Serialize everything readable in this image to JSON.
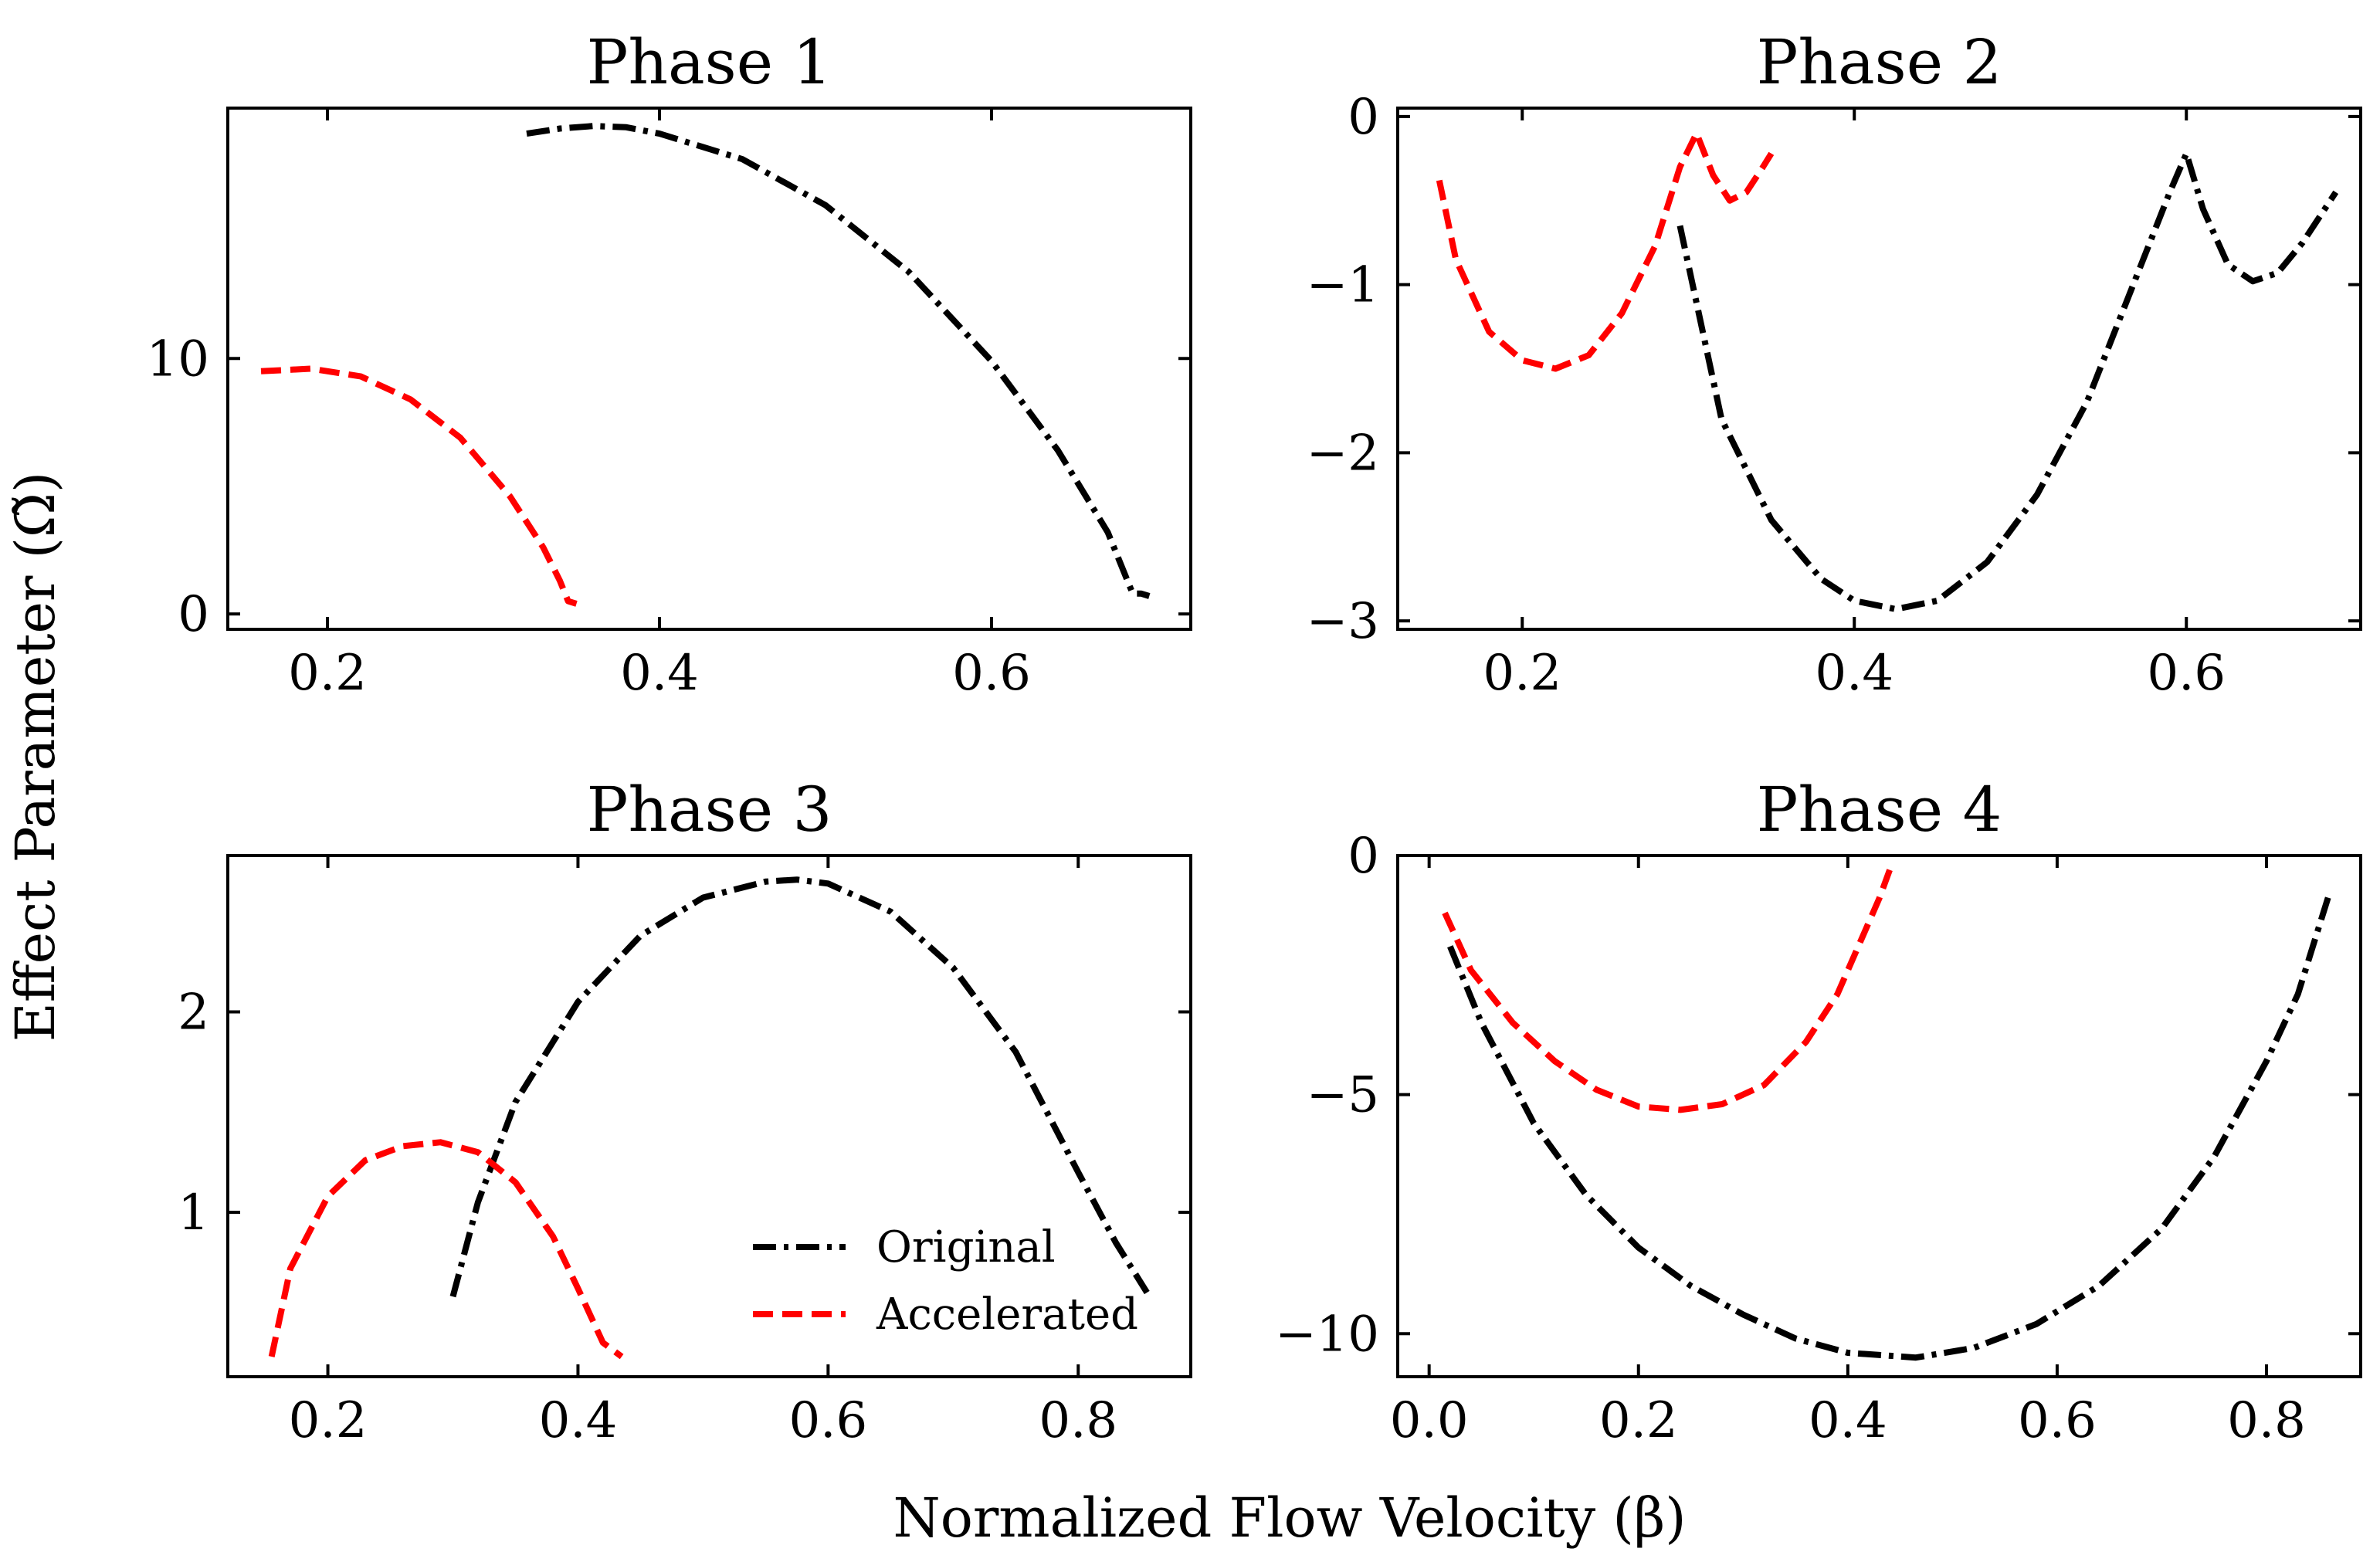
{
  "figure": {
    "xlabel": "Normalized Flow Velocity (β)",
    "ylabel": "Effect Parameter (Ω̃)"
  },
  "colors": {
    "original": "#000000",
    "accelerated": "#ff0000"
  },
  "legend": {
    "location": "lower-right",
    "panel": 2,
    "entries": [
      "Original",
      "Accelerated"
    ]
  },
  "chart_data": [
    {
      "type": "line",
      "title": "Phase 1",
      "xlim": [
        0.14,
        0.72
      ],
      "ylim": [
        -0.6,
        19.8
      ],
      "xticks": [
        0.2,
        0.4,
        0.6
      ],
      "xtick_labels": [
        "0.2",
        "0.4",
        "0.6"
      ],
      "yticks": [
        0,
        10
      ],
      "ytick_labels": [
        "0",
        "10"
      ],
      "series": [
        {
          "name": "Original",
          "x": [
            0.32,
            0.34,
            0.36,
            0.38,
            0.4,
            0.45,
            0.5,
            0.55,
            0.6,
            0.64,
            0.67,
            0.685,
            0.69,
            0.695
          ],
          "y": [
            18.8,
            19.0,
            19.1,
            19.05,
            18.8,
            17.8,
            16.0,
            13.4,
            9.9,
            6.4,
            3.2,
            0.8,
            0.8,
            0.7
          ]
        },
        {
          "name": "Accelerated",
          "x": [
            0.16,
            0.19,
            0.22,
            0.25,
            0.28,
            0.31,
            0.33,
            0.34,
            0.345,
            0.35
          ],
          "y": [
            9.5,
            9.6,
            9.3,
            8.4,
            6.9,
            4.6,
            2.6,
            1.3,
            0.5,
            0.4
          ]
        }
      ]
    },
    {
      "type": "line",
      "title": "Phase 2",
      "xlim": [
        0.125,
        0.705
      ],
      "ylim": [
        -3.05,
        0.05
      ],
      "xticks": [
        0.2,
        0.4,
        0.6
      ],
      "xtick_labels": [
        "0.2",
        "0.4",
        "0.6"
      ],
      "yticks": [
        0,
        -1,
        -2,
        -3
      ],
      "ytick_labels": [
        "0",
        "−1",
        "−2",
        "−3"
      ],
      "series": [
        {
          "name": "Original",
          "x": [
            0.295,
            0.32,
            0.35,
            0.38,
            0.4,
            0.425,
            0.45,
            0.48,
            0.51,
            0.54,
            0.57,
            0.59,
            0.6,
            0.61,
            0.625,
            0.64,
            0.655,
            0.67,
            0.69
          ],
          "y": [
            -0.65,
            -1.8,
            -2.4,
            -2.75,
            -2.88,
            -2.93,
            -2.88,
            -2.65,
            -2.25,
            -1.7,
            -0.95,
            -0.45,
            -0.22,
            -0.55,
            -0.88,
            -0.98,
            -0.93,
            -0.75,
            -0.45
          ]
        },
        {
          "name": "Accelerated",
          "x": [
            0.15,
            0.16,
            0.18,
            0.2,
            0.22,
            0.24,
            0.26,
            0.28,
            0.295,
            0.305,
            0.315,
            0.325,
            0.335,
            0.345,
            0.35
          ],
          "y": [
            -0.38,
            -0.85,
            -1.28,
            -1.45,
            -1.5,
            -1.42,
            -1.17,
            -0.77,
            -0.3,
            -0.1,
            -0.35,
            -0.5,
            -0.45,
            -0.3,
            -0.22
          ]
        }
      ]
    },
    {
      "type": "line",
      "title": "Phase 3",
      "xlim": [
        0.12,
        0.89
      ],
      "ylim": [
        0.18,
        2.78
      ],
      "xticks": [
        0.2,
        0.4,
        0.6,
        0.8
      ],
      "xtick_labels": [
        "0.2",
        "0.4",
        "0.6",
        "0.8"
      ],
      "yticks": [
        1,
        2
      ],
      "ytick_labels": [
        "1",
        "2"
      ],
      "series": [
        {
          "name": "Original",
          "x": [
            0.3,
            0.32,
            0.35,
            0.4,
            0.45,
            0.5,
            0.55,
            0.575,
            0.6,
            0.65,
            0.7,
            0.75,
            0.8,
            0.83,
            0.855
          ],
          "y": [
            0.58,
            1.05,
            1.55,
            2.05,
            2.38,
            2.57,
            2.65,
            2.66,
            2.64,
            2.5,
            2.22,
            1.8,
            1.2,
            0.85,
            0.6
          ]
        },
        {
          "name": "Accelerated",
          "x": [
            0.155,
            0.17,
            0.2,
            0.23,
            0.26,
            0.29,
            0.32,
            0.35,
            0.38,
            0.4,
            0.42,
            0.435
          ],
          "y": [
            0.28,
            0.72,
            1.08,
            1.26,
            1.33,
            1.35,
            1.3,
            1.15,
            0.88,
            0.62,
            0.35,
            0.28
          ]
        }
      ]
    },
    {
      "type": "line",
      "title": "Phase 4",
      "xlim": [
        -0.03,
        0.89
      ],
      "ylim": [
        -10.9,
        0.0
      ],
      "xticks": [
        0.0,
        0.2,
        0.4,
        0.6,
        0.8
      ],
      "xtick_labels": [
        "0.0",
        "0.2",
        "0.4",
        "0.6",
        "0.8"
      ],
      "yticks": [
        0,
        -5,
        -10
      ],
      "ytick_labels": [
        "0",
        "−5",
        "−10"
      ],
      "series": [
        {
          "name": "Original",
          "x": [
            0.02,
            0.05,
            0.1,
            0.15,
            0.2,
            0.25,
            0.3,
            0.35,
            0.4,
            0.465,
            0.52,
            0.58,
            0.64,
            0.7,
            0.75,
            0.8,
            0.83,
            0.86
          ],
          "y": [
            -1.9,
            -3.5,
            -5.6,
            -7.1,
            -8.2,
            -9.0,
            -9.6,
            -10.1,
            -10.4,
            -10.5,
            -10.3,
            -9.8,
            -9.0,
            -7.8,
            -6.3,
            -4.3,
            -2.9,
            -0.8
          ]
        },
        {
          "name": "Accelerated",
          "x": [
            0.015,
            0.04,
            0.08,
            0.12,
            0.16,
            0.2,
            0.24,
            0.28,
            0.32,
            0.36,
            0.39,
            0.41,
            0.43,
            0.44
          ],
          "y": [
            -1.2,
            -2.4,
            -3.5,
            -4.3,
            -4.9,
            -5.25,
            -5.32,
            -5.2,
            -4.8,
            -3.9,
            -2.9,
            -1.9,
            -0.9,
            -0.3
          ]
        }
      ]
    }
  ]
}
